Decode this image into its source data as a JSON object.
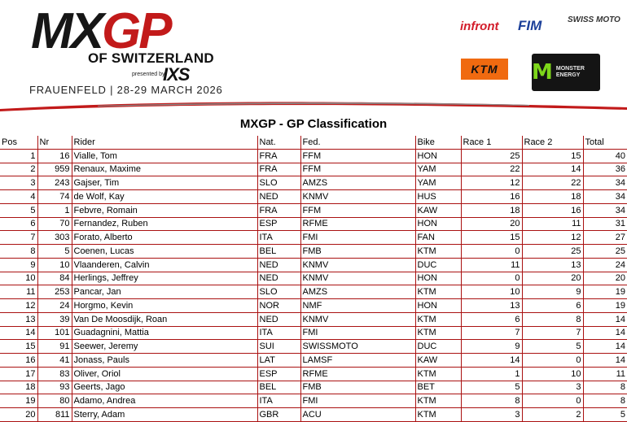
{
  "header": {
    "logo_main": "MX",
    "logo_accent": "GP",
    "logo_subtitle": "OF SWITZERLAND",
    "presented_by": "presented by",
    "presenting_sponsor": "IXS",
    "event_line": "FRAUENFELD | 28-29 MARCH 2026",
    "sponsors": {
      "infront": "infront",
      "fim": "FIM",
      "swiss_moto": "SWISS MOTO",
      "ktm": "KTM",
      "monster": "MONSTER ENERGY"
    },
    "accent_color": "#c21a1a"
  },
  "title": "MXGP - GP Classification",
  "table": {
    "columns": [
      "Pos",
      "Nr",
      "Rider",
      "Nat.",
      "Fed.",
      "Bike",
      "Race 1",
      "Race 2",
      "Total"
    ],
    "rows": [
      [
        "1",
        "16",
        "Vialle, Tom",
        "FRA",
        "FFM",
        "HON",
        "25",
        "15",
        "40"
      ],
      [
        "2",
        "959",
        "Renaux, Maxime",
        "FRA",
        "FFM",
        "YAM",
        "22",
        "14",
        "36"
      ],
      [
        "3",
        "243",
        "Gajser, Tim",
        "SLO",
        "AMZS",
        "YAM",
        "12",
        "22",
        "34"
      ],
      [
        "4",
        "74",
        "de Wolf, Kay",
        "NED",
        "KNMV",
        "HUS",
        "16",
        "18",
        "34"
      ],
      [
        "5",
        "1",
        "Febvre, Romain",
        "FRA",
        "FFM",
        "KAW",
        "18",
        "16",
        "34"
      ],
      [
        "6",
        "70",
        "Fernandez, Ruben",
        "ESP",
        "RFME",
        "HON",
        "20",
        "11",
        "31"
      ],
      [
        "7",
        "303",
        "Forato, Alberto",
        "ITA",
        "FMI",
        "FAN",
        "15",
        "12",
        "27"
      ],
      [
        "8",
        "5",
        "Coenen, Lucas",
        "BEL",
        "FMB",
        "KTM",
        "0",
        "25",
        "25"
      ],
      [
        "9",
        "10",
        "Vlaanderen, Calvin",
        "NED",
        "KNMV",
        "DUC",
        "11",
        "13",
        "24"
      ],
      [
        "10",
        "84",
        "Herlings, Jeffrey",
        "NED",
        "KNMV",
        "HON",
        "0",
        "20",
        "20"
      ],
      [
        "11",
        "253",
        "Pancar, Jan",
        "SLO",
        "AMZS",
        "KTM",
        "10",
        "9",
        "19"
      ],
      [
        "12",
        "24",
        "Horgmo, Kevin",
        "NOR",
        "NMF",
        "HON",
        "13",
        "6",
        "19"
      ],
      [
        "13",
        "39",
        "Van De Moosdijk, Roan",
        "NED",
        "KNMV",
        "KTM",
        "6",
        "8",
        "14"
      ],
      [
        "14",
        "101",
        "Guadagnini, Mattia",
        "ITA",
        "FMI",
        "KTM",
        "7",
        "7",
        "14"
      ],
      [
        "15",
        "91",
        "Seewer, Jeremy",
        "SUI",
        "SWISSMOTO",
        "DUC",
        "9",
        "5",
        "14"
      ],
      [
        "16",
        "41",
        "Jonass, Pauls",
        "LAT",
        "LAMSF",
        "KAW",
        "14",
        "0",
        "14"
      ],
      [
        "17",
        "83",
        "Oliver, Oriol",
        "ESP",
        "RFME",
        "KTM",
        "1",
        "10",
        "11"
      ],
      [
        "18",
        "93",
        "Geerts, Jago",
        "BEL",
        "FMB",
        "BET",
        "5",
        "3",
        "8"
      ],
      [
        "19",
        "80",
        "Adamo, Andrea",
        "ITA",
        "FMI",
        "KTM",
        "8",
        "0",
        "8"
      ],
      [
        "20",
        "811",
        "Sterry, Adam",
        "GBR",
        "ACU",
        "KTM",
        "3",
        "2",
        "5"
      ]
    ]
  }
}
